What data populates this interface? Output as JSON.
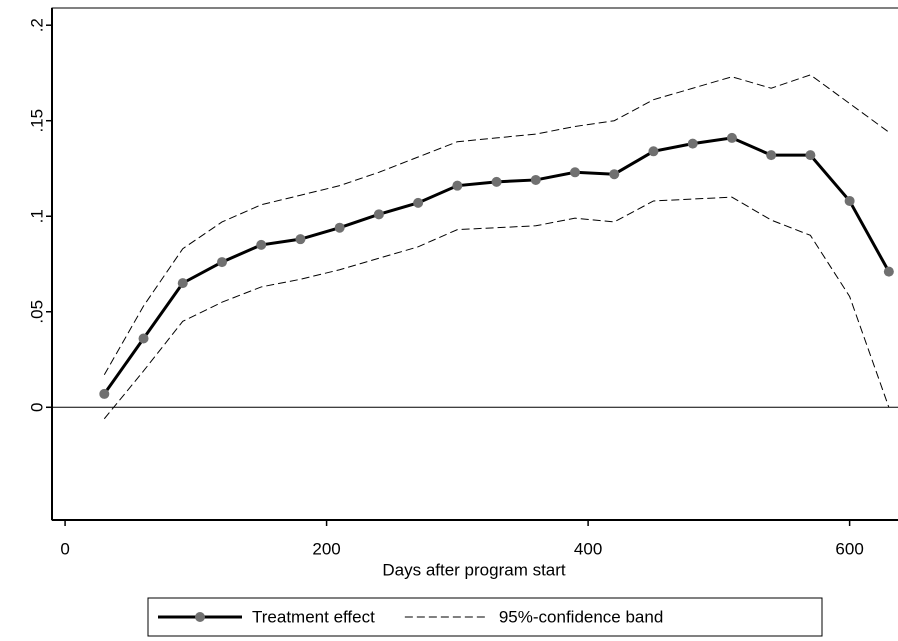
{
  "chart_data": {
    "type": "line",
    "x_label": "Days after program start",
    "x": [
      30,
      60,
      90,
      120,
      150,
      180,
      210,
      240,
      270,
      300,
      330,
      360,
      390,
      420,
      450,
      480,
      510,
      540,
      570,
      600,
      630
    ],
    "series": [
      {
        "name": "Treatment effect",
        "color": "#000000",
        "style": "solid",
        "marker": "#707070",
        "values": [
          0.007,
          0.036,
          0.065,
          0.076,
          0.085,
          0.088,
          0.094,
          0.101,
          0.107,
          0.116,
          0.118,
          0.119,
          0.123,
          0.122,
          0.134,
          0.138,
          0.141,
          0.132,
          0.132,
          0.108,
          0.071
        ]
      },
      {
        "name": "95%-confidence band",
        "color": "#000000",
        "style": "dashed",
        "values": [
          0.017,
          0.053,
          0.083,
          0.097,
          0.106,
          0.111,
          0.116,
          0.123,
          0.131,
          0.139,
          0.141,
          0.143,
          0.147,
          0.15,
          0.161,
          0.167,
          0.173,
          0.167,
          0.174,
          0.159,
          0.144
        ]
      },
      {
        "color": "#000000",
        "style": "dashed",
        "values": [
          -0.006,
          0.019,
          0.045,
          0.055,
          0.063,
          0.067,
          0.072,
          0.078,
          0.084,
          0.093,
          0.094,
          0.095,
          0.099,
          0.097,
          0.108,
          0.109,
          0.11,
          0.098,
          0.09,
          0.058,
          0.0
        ]
      }
    ],
    "xlim": [
      -10,
      637
    ],
    "xticks": [
      0,
      200,
      400,
      600
    ],
    "ylim": [
      -0.059,
      0.209
    ],
    "yticks": [
      {
        "value": 0,
        "label": "0"
      },
      {
        "value": 0.05,
        "label": ".05"
      },
      {
        "value": 0.1,
        "label": ".1"
      },
      {
        "value": 0.15,
        "label": ".15"
      },
      {
        "value": 0.2,
        "label": ".2"
      }
    ],
    "zero_line": true,
    "legend": "bottom"
  }
}
